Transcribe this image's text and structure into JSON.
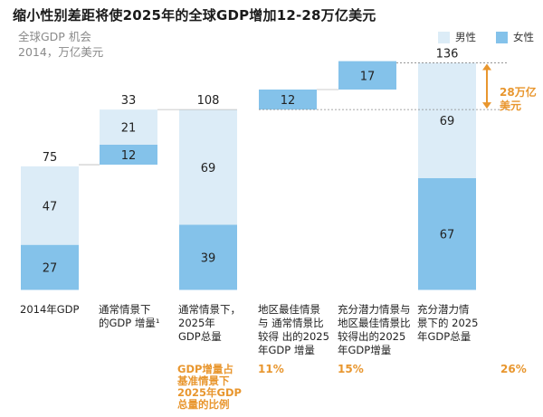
{
  "title": "缩小性别差距将使2025年的全球GDP增加12-28万亿美元",
  "subtitle_line1": "全球GDP 机会",
  "subtitle_line2": "2014，万亿美元",
  "colors": {
    "male": "#dcecf7",
    "female": "#84c2ea",
    "accent": "#e8962e"
  },
  "legend": {
    "male": "男性",
    "female": "女性"
  },
  "chart_data": {
    "type": "waterfall",
    "units": "万亿美元",
    "bars": [
      {
        "label_lines": [
          "2014年GDP"
        ],
        "segments": [
          {
            "series": "female",
            "value": 27
          },
          {
            "series": "male",
            "value": 47
          }
        ],
        "base": 0,
        "total": 75
      },
      {
        "label_lines": [
          "通常情景下",
          "的GDP 增量¹"
        ],
        "segments": [
          {
            "series": "female",
            "value": 12
          },
          {
            "series": "male",
            "value": 21
          }
        ],
        "base": 75,
        "total": 33
      },
      {
        "label_lines": [
          "通常情景下，",
          "2025年",
          "GDP总量"
        ],
        "segments": [
          {
            "series": "female",
            "value": 39
          },
          {
            "series": "male",
            "value": 69
          }
        ],
        "base": 0,
        "total": 108
      },
      {
        "label_lines": [
          "地区最佳情景",
          "与 通常情景比",
          "较得 出的2025",
          "年GDP 增量"
        ],
        "segments": [
          {
            "series": "female",
            "value": 12
          }
        ],
        "base": 108,
        "total": null
      },
      {
        "label_lines": [
          "充分潜力情景与",
          "地区最佳情景比",
          "较得出的2025",
          "年GDP增量"
        ],
        "segments": [
          {
            "series": "female",
            "value": 17
          }
        ],
        "base": 120,
        "total": null
      },
      {
        "label_lines": [
          "充分潜力情",
          "景下的 2025",
          "年GDP总量"
        ],
        "segments": [
          {
            "series": "female",
            "value": 67
          },
          {
            "series": "male",
            "value": 69
          }
        ],
        "base": 0,
        "total": 136
      }
    ],
    "bracket_label": [
      "28万亿",
      "美元"
    ],
    "percent_label": [
      "GDP增量占",
      "基准情景下",
      "2025年GDP",
      "总量的比例"
    ],
    "percents": [
      "",
      "",
      "",
      "11%",
      "15%",
      "26%"
    ]
  }
}
